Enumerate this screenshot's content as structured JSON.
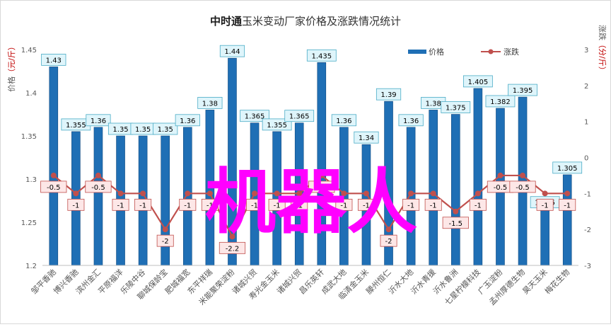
{
  "colors": {
    "bar": "#1f6fb5",
    "bar_dark": "#0f4a80",
    "line": "#c0504d",
    "price_label_bg": "#dff5fb",
    "price_label_border": "#4bacc6",
    "change_label_bg": "#fde7e7",
    "change_label_border": "#c0504d",
    "overlay": "#ff00ff",
    "unit_red": "#c00000"
  },
  "chart_data": {
    "type": "bar",
    "title": {
      "brand": "中时通",
      "rest": "玉米变动厂家价格及涨跌情况统计"
    },
    "ylabel_left": {
      "text": "价格",
      "unit": "（元/斤）"
    },
    "ylabel_right": {
      "text": "涨跌",
      "unit": "（分/斤）"
    },
    "ylim_left": [
      1.2,
      1.45
    ],
    "ylim_right": [
      -3,
      3
    ],
    "left_ticks": [
      "1.2",
      "1.25",
      "1.3",
      "1.35",
      "1.4",
      "1.45"
    ],
    "right_ticks": [
      "-3",
      "-2",
      "-1",
      "0",
      "1",
      "2",
      "3"
    ],
    "legend": {
      "price": "价格",
      "change": "涨跌",
      "position": "top-right"
    },
    "categories": [
      "邹平香驰",
      "博兴香驰",
      "滨州金汇",
      "平原福洋",
      "乐陵中谷",
      "聊城保龄宝",
      "肥城福宽",
      "东平祥瑞",
      "米能聚荣淀粉",
      "诸城兴贸",
      "寿光金玉米",
      "诸城兴贸",
      "昌乐英轩",
      "成武大地",
      "临清金玉米",
      "滕州恒仁",
      "沂水大地",
      "沂水青援",
      "沂水鲁洲",
      "七星柠檬科技",
      "广玉淀粉",
      "孟州厚德生物",
      "昊天玉米",
      "梅花生物"
    ],
    "price": [
      1.43,
      1.355,
      1.36,
      1.35,
      1.35,
      1.35,
      1.36,
      1.38,
      1.44,
      1.365,
      1.355,
      1.365,
      1.435,
      1.36,
      1.34,
      1.39,
      1.36,
      1.38,
      1.375,
      1.405,
      1.382,
      1.395,
      1.265,
      1.305
    ],
    "price_labels": [
      "1.43",
      "1.355",
      "1.36",
      "1.35",
      "1.35",
      "1.35",
      "1.36",
      "1.38",
      "1.44",
      "1.365",
      "1.355",
      "1.365",
      "1.435",
      "1.36",
      "1.34",
      "1.39",
      "1.36",
      "1.38",
      "1.375",
      "1.405",
      "1.382",
      "1.395",
      "1.265",
      "1.305"
    ],
    "change": [
      -0.5,
      -1,
      -0.5,
      -1,
      -1,
      -2,
      -1,
      -1,
      -2.2,
      -1,
      -1,
      -1,
      -0.5,
      -1,
      -1,
      -2,
      -1,
      -1,
      -1.5,
      -1,
      -0.5,
      -0.5,
      -1,
      -1
    ],
    "change_labels": [
      "-0.5",
      "-1",
      "-0.5",
      "-1",
      "-1",
      "-2",
      "-1",
      "-1",
      "-2.2",
      "-1",
      "-1",
      "-1",
      "-0.5",
      "-1",
      "-1",
      "-2",
      "-1",
      "-1",
      "-1.5",
      "-1",
      "-0.5",
      "-0.5",
      "-1",
      "-1"
    ],
    "grid": false
  },
  "overlay_text": "机器人"
}
